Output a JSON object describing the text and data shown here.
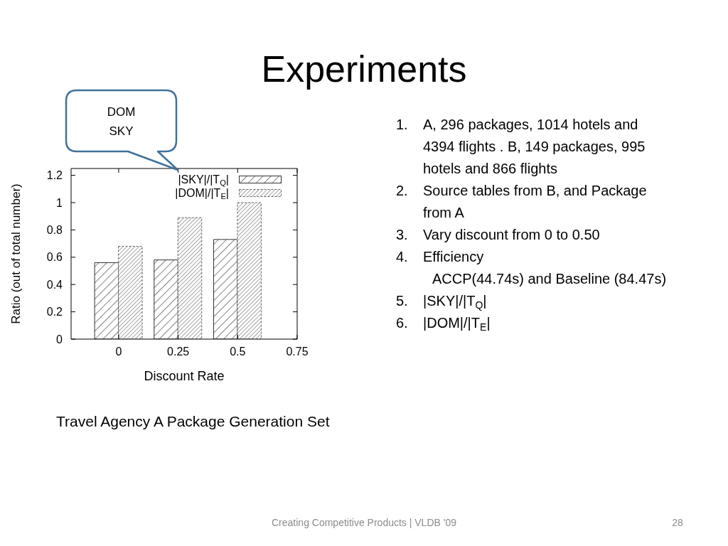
{
  "chart_data": {
    "type": "bar",
    "title": "Experiments",
    "xlabel": "Discount Rate",
    "ylabel": "Ratio (out of total number)",
    "x": [
      0,
      0.25,
      0.5
    ],
    "series": [
      {
        "name": "|SKY|/|T$_{Q}$|",
        "color": "#333333",
        "values": [
          0.56,
          0.58,
          0.73
        ]
      },
      {
        "name": "|DOM|/|T$_{E}$|",
        "color": "#666666",
        "values": [
          0.68,
          0.89,
          1.0
        ]
      }
    ],
    "xlim": [
      -0.2,
      0.75
    ],
    "xticks": [
      0,
      0.25,
      0.5,
      0.75
    ],
    "ylim": [
      0,
      1.25
    ],
    "yticks": [
      0,
      0.2,
      0.4,
      0.6,
      0.8,
      1,
      1.2
    ],
    "legend": "top right",
    "annotations": [
      "DOM\nSKY",
      "1. A, 296 packages, 1014 hotels and 4394 flights . B, 149 packages, 995 hotels and 866 flights",
      "2. Source tables from B, and Package from A",
      "3. Vary discount from 0 to 0.50",
      "4. Efficiency\nACCP(44.74s) and Baseline (84.47s)",
      "5. |SKY|/|T$_{Q}$|",
      "6. |DOM|/|T$_{E}$|",
      "Travel Agency A Package Generation Set",
      "Creating Competitive Products | VLDB '09",
      "28"
    ]
  }
}
